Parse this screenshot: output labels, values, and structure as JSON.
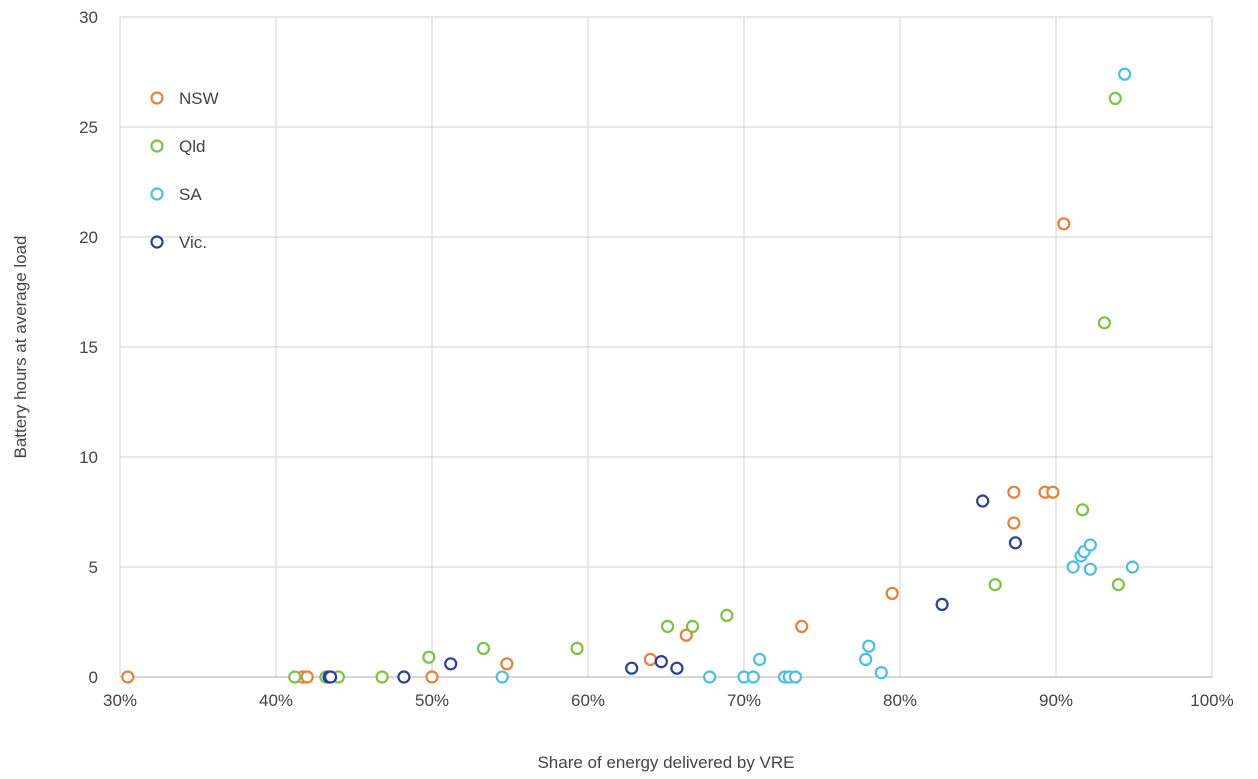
{
  "chart_data": {
    "type": "scatter",
    "title": "",
    "xlabel": "Share of energy delivered by VRE",
    "ylabel": "Battery hours at average load",
    "xlim": [
      0.3,
      1.0
    ],
    "ylim": [
      0,
      30
    ],
    "x_ticks": [
      0.3,
      0.4,
      0.5,
      0.6,
      0.7,
      0.8,
      0.9,
      1.0
    ],
    "x_tick_labels": [
      "30%",
      "40%",
      "50%",
      "60%",
      "70%",
      "80%",
      "90%",
      "100%"
    ],
    "y_ticks": [
      0,
      5,
      10,
      15,
      20,
      25,
      30
    ],
    "y_tick_labels": [
      "0",
      "5",
      "10",
      "15",
      "20",
      "25",
      "30"
    ],
    "grid": true,
    "legend_position": "top-left",
    "series": [
      {
        "name": "NSW",
        "color": "#e8803a",
        "points": [
          [
            0.305,
            0.0
          ],
          [
            0.417,
            0.0
          ],
          [
            0.42,
            0.0
          ],
          [
            0.5,
            0.0
          ],
          [
            0.548,
            0.6
          ],
          [
            0.64,
            0.8
          ],
          [
            0.663,
            1.9
          ],
          [
            0.737,
            2.3
          ],
          [
            0.795,
            3.8
          ],
          [
            0.873,
            8.4
          ],
          [
            0.873,
            7.0
          ],
          [
            0.893,
            8.4
          ],
          [
            0.898,
            8.4
          ],
          [
            0.905,
            20.6
          ]
        ]
      },
      {
        "name": "Qld",
        "color": "#7dc242",
        "points": [
          [
            0.412,
            0.0
          ],
          [
            0.432,
            0.0
          ],
          [
            0.44,
            0.0
          ],
          [
            0.468,
            0.0
          ],
          [
            0.498,
            0.9
          ],
          [
            0.533,
            1.3
          ],
          [
            0.593,
            1.3
          ],
          [
            0.651,
            2.3
          ],
          [
            0.667,
            2.3
          ],
          [
            0.689,
            2.8
          ],
          [
            0.861,
            4.2
          ],
          [
            0.917,
            7.6
          ],
          [
            0.931,
            16.1
          ],
          [
            0.938,
            26.3
          ],
          [
            0.94,
            4.2
          ]
        ]
      },
      {
        "name": "SA",
        "color": "#4bbfe0",
        "points": [
          [
            0.545,
            0.0
          ],
          [
            0.678,
            0.0
          ],
          [
            0.7,
            0.0
          ],
          [
            0.706,
            0.0
          ],
          [
            0.71,
            0.8
          ],
          [
            0.726,
            0.0
          ],
          [
            0.729,
            0.0
          ],
          [
            0.733,
            0.0
          ],
          [
            0.778,
            0.8
          ],
          [
            0.78,
            1.4
          ],
          [
            0.788,
            0.2
          ],
          [
            0.911,
            5.0
          ],
          [
            0.916,
            5.5
          ],
          [
            0.918,
            5.7
          ],
          [
            0.922,
            4.9
          ],
          [
            0.922,
            6.0
          ],
          [
            0.944,
            27.4
          ],
          [
            0.949,
            5.0
          ]
        ]
      },
      {
        "name": "Vic.",
        "color": "#2e3f9a",
        "points": [
          [
            0.434,
            0.0
          ],
          [
            0.435,
            0.0
          ],
          [
            0.482,
            0.0
          ],
          [
            0.512,
            0.6
          ],
          [
            0.628,
            0.4
          ],
          [
            0.647,
            0.7
          ],
          [
            0.657,
            0.4
          ],
          [
            0.827,
            3.3
          ],
          [
            0.853,
            8.0
          ],
          [
            0.874,
            6.1
          ]
        ]
      }
    ]
  }
}
